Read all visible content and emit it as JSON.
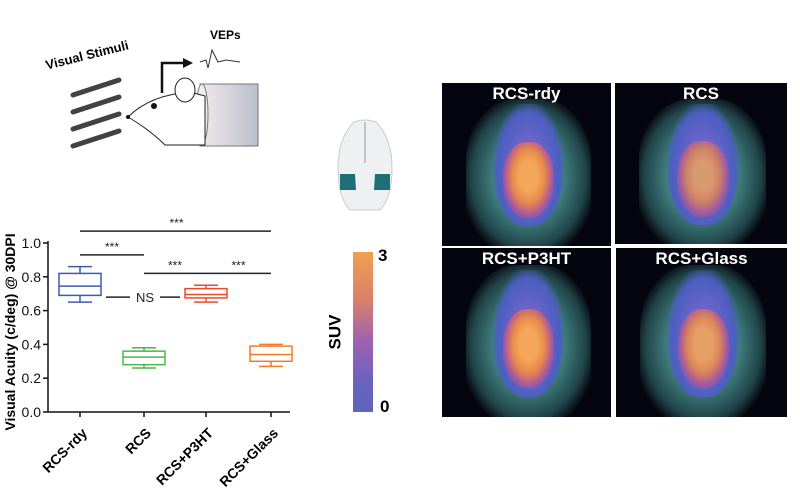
{
  "schematic": {
    "stimulus_label": "Visual Stimuli",
    "vep_label": "VEPs"
  },
  "colorbar": {
    "label": "SUV",
    "max_label": "3",
    "min_label": "0",
    "max": 3,
    "min": 0
  },
  "pet_panels": [
    {
      "label": "RCS-rdy"
    },
    {
      "label": "RCS"
    },
    {
      "label": "RCS+P3HT"
    },
    {
      "label": "RCS+Glass"
    }
  ],
  "chart_data": {
    "type": "box",
    "ylabel": "Visual Acuity (c/deg) @ 30DPI",
    "xlabel": "",
    "ylim": [
      0,
      1.0
    ],
    "yticks": [
      "0.0",
      "0.2",
      "0.4",
      "0.6",
      "0.8",
      "1.0"
    ],
    "ytick_values": [
      0,
      0.2,
      0.4,
      0.6,
      0.8,
      1.0
    ],
    "categories": [
      "RCS-rdy",
      "RCS",
      "RCS+P3HT",
      "RCS+Glass"
    ],
    "boxes": [
      {
        "name": "RCS-rdy",
        "min": 0.65,
        "q1": 0.69,
        "median": 0.745,
        "q3": 0.82,
        "max": 0.86,
        "color": "#3b5bb5"
      },
      {
        "name": "RCS",
        "min": 0.26,
        "q1": 0.28,
        "median": 0.325,
        "q3": 0.36,
        "max": 0.38,
        "color": "#4cb848"
      },
      {
        "name": "RCS+P3HT",
        "min": 0.65,
        "q1": 0.675,
        "median": 0.695,
        "q3": 0.73,
        "max": 0.75,
        "color": "#ee4a2a"
      },
      {
        "name": "RCS+Glass",
        "min": 0.27,
        "q1": 0.3,
        "median": 0.34,
        "q3": 0.39,
        "max": 0.4,
        "color": "#f47a2a"
      }
    ],
    "significance": [
      {
        "from": 0,
        "to": 3,
        "y": 1.07,
        "label": "***"
      },
      {
        "from": 0,
        "to": 1,
        "y": 0.93,
        "label": "***"
      },
      {
        "from": 1,
        "to": 2,
        "y": 0.82,
        "label": "***"
      },
      {
        "from": 2,
        "to": 3,
        "y": 0.82,
        "label": "***"
      },
      {
        "from": 0,
        "to": 2,
        "y": 0.68,
        "label": "NS"
      }
    ]
  }
}
